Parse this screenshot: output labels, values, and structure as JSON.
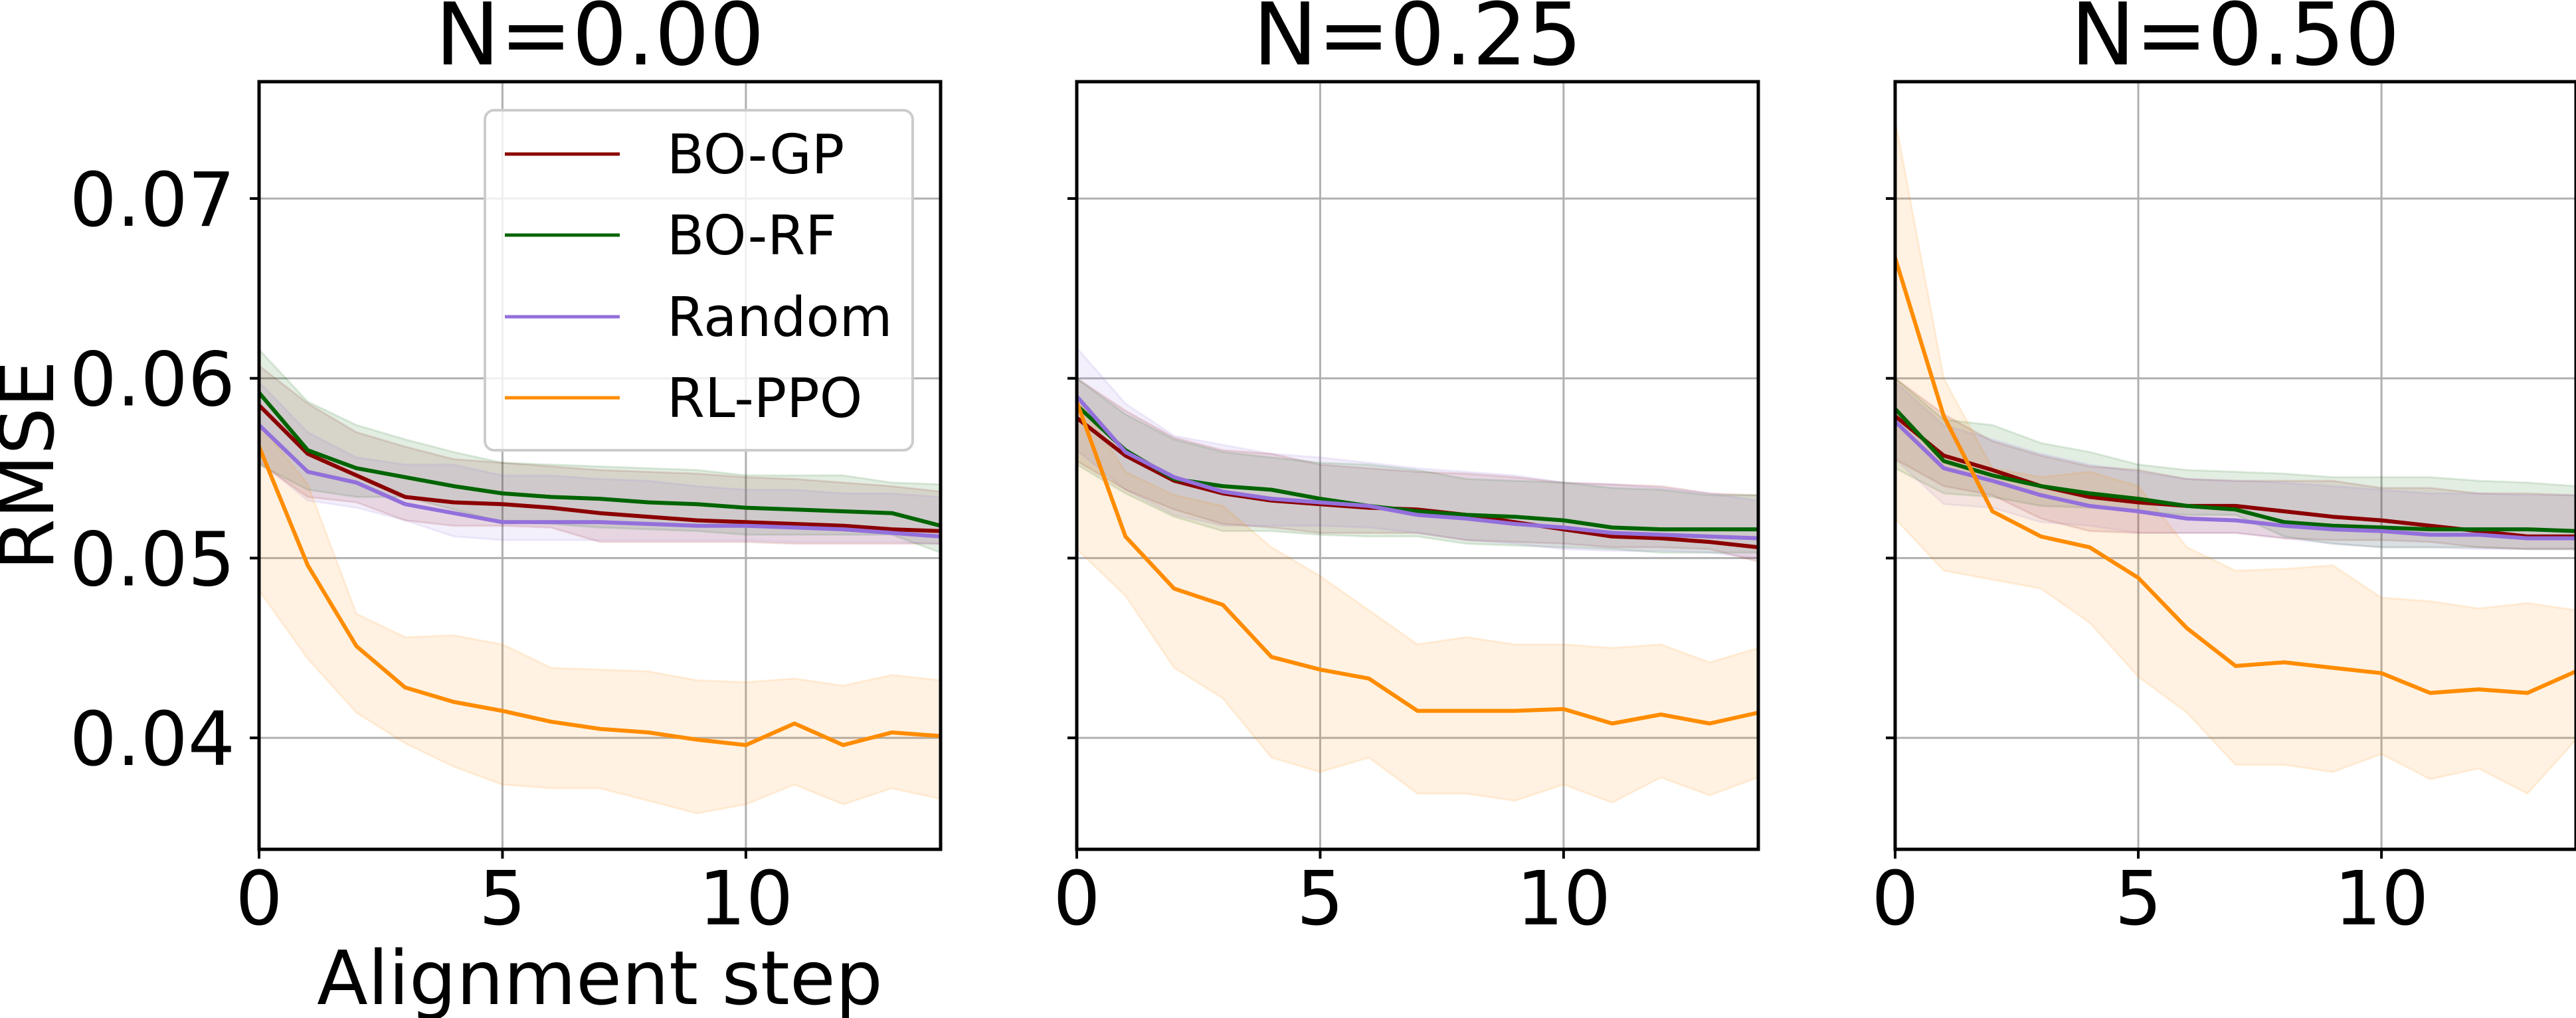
{
  "chart_data": [
    {
      "type": "line",
      "title": "N=0.00",
      "xlabel": "Alignment step",
      "ylabel": "RMSE",
      "xlim": [
        0,
        14
      ],
      "ylim": [
        0.0338,
        0.0765
      ],
      "xticks": [
        0,
        5,
        10
      ],
      "xtick_labels": [
        "0",
        "5",
        "10"
      ],
      "yticks": [
        0.04,
        0.05,
        0.06,
        0.07
      ],
      "ytick_labels": [
        "0.04",
        "0.05",
        "0.06",
        "0.07"
      ],
      "grid": true,
      "legend": {
        "placement": "upper-right",
        "entries": [
          "BO-GP",
          "BO-RF",
          "Random",
          "RL-PPO"
        ]
      },
      "x": [
        0,
        1,
        2,
        3,
        4,
        5,
        6,
        7,
        8,
        9,
        10,
        11,
        12,
        13,
        14
      ],
      "series": [
        {
          "name": "BO-GP",
          "color": "#8b0000",
          "values": [
            0.0585,
            0.0558,
            0.0546,
            0.0534,
            0.0531,
            0.053,
            0.0528,
            0.0525,
            0.0523,
            0.0521,
            0.052,
            0.0519,
            0.0518,
            0.0516,
            0.0515
          ],
          "lower": [
            0.0553,
            0.0534,
            0.0531,
            0.0521,
            0.0518,
            0.0518,
            0.0517,
            0.0509,
            0.0509,
            0.0509,
            0.0509,
            0.0508,
            0.0508,
            0.0508,
            0.0508
          ],
          "upper": [
            0.0607,
            0.0586,
            0.057,
            0.0562,
            0.0555,
            0.0553,
            0.0551,
            0.0549,
            0.0548,
            0.0547,
            0.0545,
            0.0544,
            0.0542,
            0.054,
            0.0537
          ]
        },
        {
          "name": "BO-RF",
          "color": "#006400",
          "values": [
            0.0592,
            0.056,
            0.055,
            0.0545,
            0.054,
            0.0536,
            0.0534,
            0.0533,
            0.0531,
            0.053,
            0.0528,
            0.0527,
            0.0526,
            0.0525,
            0.0518
          ],
          "lower": [
            0.0552,
            0.0538,
            0.0534,
            0.0534,
            0.0527,
            0.052,
            0.0519,
            0.0517,
            0.0516,
            0.0515,
            0.0513,
            0.0513,
            0.0513,
            0.0513,
            0.0503
          ],
          "upper": [
            0.0616,
            0.0587,
            0.0574,
            0.0566,
            0.0559,
            0.0553,
            0.0552,
            0.0551,
            0.055,
            0.0549,
            0.0546,
            0.0546,
            0.0546,
            0.0542,
            0.0541
          ]
        },
        {
          "name": "Random",
          "color": "#9370db",
          "values": [
            0.0574,
            0.0548,
            0.0542,
            0.053,
            0.0525,
            0.052,
            0.052,
            0.052,
            0.0519,
            0.0518,
            0.0518,
            0.0517,
            0.0516,
            0.0514,
            0.0512
          ],
          "lower": [
            0.0554,
            0.0532,
            0.0528,
            0.0521,
            0.0512,
            0.051,
            0.051,
            0.051,
            0.051,
            0.051,
            0.051,
            0.0509,
            0.0509,
            0.0509,
            0.0508
          ],
          "upper": [
            0.0598,
            0.057,
            0.0556,
            0.0552,
            0.0552,
            0.0546,
            0.0546,
            0.0544,
            0.0543,
            0.054,
            0.0538,
            0.0538,
            0.0536,
            0.0536,
            0.0534
          ]
        },
        {
          "name": "RL-PPO",
          "color": "#ff8c00",
          "values": [
            0.0562,
            0.0496,
            0.0451,
            0.0428,
            0.042,
            0.0415,
            0.0409,
            0.0405,
            0.0403,
            0.0399,
            0.0396,
            0.0408,
            0.0396,
            0.0403,
            0.0401
          ],
          "lower": [
            0.0482,
            0.0444,
            0.0414,
            0.0397,
            0.0384,
            0.0374,
            0.0372,
            0.0372,
            0.0365,
            0.0358,
            0.0363,
            0.0374,
            0.0363,
            0.0372,
            0.0366
          ],
          "upper": [
            0.0575,
            0.0541,
            0.0469,
            0.0456,
            0.0457,
            0.0452,
            0.0439,
            0.0438,
            0.0437,
            0.0432,
            0.0431,
            0.0433,
            0.0429,
            0.0435,
            0.0432
          ]
        }
      ]
    },
    {
      "type": "line",
      "title": "N=0.25",
      "xlabel": "",
      "ylabel": "",
      "xlim": [
        0,
        14
      ],
      "ylim": [
        0.0338,
        0.0765
      ],
      "xticks": [
        0,
        5,
        10
      ],
      "xtick_labels": [
        "0",
        "5",
        "10"
      ],
      "yticks": [
        0.04,
        0.05,
        0.06,
        0.07
      ],
      "ytick_labels": [],
      "grid": true,
      "x": [
        0,
        1,
        2,
        3,
        4,
        5,
        6,
        7,
        8,
        9,
        10,
        11,
        12,
        13,
        14
      ],
      "series": [
        {
          "name": "BO-GP",
          "color": "#8b0000",
          "values": [
            0.0578,
            0.0557,
            0.0543,
            0.0536,
            0.0532,
            0.053,
            0.0528,
            0.0527,
            0.0524,
            0.052,
            0.0516,
            0.0512,
            0.0511,
            0.0509,
            0.0506
          ],
          "lower": [
            0.0554,
            0.0538,
            0.0527,
            0.0519,
            0.0517,
            0.0514,
            0.0514,
            0.0514,
            0.051,
            0.0509,
            0.0508,
            0.0506,
            0.0506,
            0.0505,
            0.0498
          ],
          "upper": [
            0.06,
            0.0582,
            0.0567,
            0.056,
            0.0558,
            0.0552,
            0.055,
            0.0548,
            0.0547,
            0.0545,
            0.0542,
            0.0541,
            0.054,
            0.0536,
            0.0535
          ]
        },
        {
          "name": "BO-RF",
          "color": "#006400",
          "values": [
            0.0585,
            0.056,
            0.0544,
            0.054,
            0.0538,
            0.0533,
            0.0529,
            0.0526,
            0.0524,
            0.0523,
            0.0521,
            0.0517,
            0.0516,
            0.0516,
            0.0516
          ],
          "lower": [
            0.0552,
            0.0536,
            0.0523,
            0.0515,
            0.0515,
            0.0513,
            0.0512,
            0.0512,
            0.0508,
            0.0507,
            0.0506,
            0.0505,
            0.0503,
            0.0503,
            0.0503
          ],
          "upper": [
            0.06,
            0.058,
            0.0566,
            0.0559,
            0.0556,
            0.0553,
            0.0552,
            0.0549,
            0.0544,
            0.0543,
            0.0542,
            0.0539,
            0.0538,
            0.0535,
            0.0535
          ]
        },
        {
          "name": "Random",
          "color": "#9370db",
          "values": [
            0.059,
            0.0559,
            0.0545,
            0.0537,
            0.0533,
            0.0531,
            0.0529,
            0.0524,
            0.0522,
            0.0519,
            0.0517,
            0.0514,
            0.0513,
            0.0512,
            0.0511
          ],
          "lower": [
            0.056,
            0.0538,
            0.0524,
            0.0518,
            0.0518,
            0.0518,
            0.0517,
            0.0514,
            0.051,
            0.0508,
            0.0505,
            0.0504,
            0.0504,
            0.0503,
            0.05
          ],
          "upper": [
            0.0617,
            0.0586,
            0.0568,
            0.0563,
            0.0558,
            0.0556,
            0.0553,
            0.055,
            0.0548,
            0.0546,
            0.0542,
            0.0541,
            0.0539,
            0.0536,
            0.0532
          ]
        },
        {
          "name": "RL-PPO",
          "color": "#ff8c00",
          "values": [
            0.0587,
            0.0512,
            0.0483,
            0.0474,
            0.0445,
            0.0438,
            0.0433,
            0.0415,
            0.0415,
            0.0415,
            0.0416,
            0.0408,
            0.0413,
            0.0408,
            0.0414
          ],
          "lower": [
            0.0505,
            0.0479,
            0.0439,
            0.0422,
            0.0389,
            0.0381,
            0.0389,
            0.0369,
            0.0369,
            0.0365,
            0.0374,
            0.0364,
            0.0378,
            0.0368,
            0.0378
          ],
          "upper": [
            0.059,
            0.0548,
            0.0535,
            0.0529,
            0.0506,
            0.049,
            0.0471,
            0.0452,
            0.0456,
            0.0452,
            0.0452,
            0.045,
            0.0452,
            0.0442,
            0.045
          ]
        }
      ]
    },
    {
      "type": "line",
      "title": "N=0.50",
      "xlabel": "",
      "ylabel": "",
      "xlim": [
        0,
        14
      ],
      "ylim": [
        0.0338,
        0.0765
      ],
      "xticks": [
        0,
        5,
        10
      ],
      "xtick_labels": [
        "0",
        "5",
        "10"
      ],
      "yticks": [
        0.04,
        0.05,
        0.06,
        0.07
      ],
      "ytick_labels": [],
      "grid": true,
      "x": [
        0,
        1,
        2,
        3,
        4,
        5,
        6,
        7,
        8,
        9,
        10,
        11,
        12,
        13,
        14
      ],
      "series": [
        {
          "name": "BO-GP",
          "color": "#8b0000",
          "values": [
            0.0579,
            0.0557,
            0.0549,
            0.054,
            0.0534,
            0.0531,
            0.0529,
            0.0529,
            0.0526,
            0.0523,
            0.0521,
            0.0518,
            0.0515,
            0.0512,
            0.0512
          ],
          "lower": [
            0.0555,
            0.054,
            0.0535,
            0.0522,
            0.0515,
            0.0514,
            0.0514,
            0.0514,
            0.0511,
            0.051,
            0.051,
            0.0509,
            0.0506,
            0.0505,
            0.0505
          ],
          "upper": [
            0.06,
            0.058,
            0.0565,
            0.0557,
            0.0551,
            0.0549,
            0.0544,
            0.0543,
            0.0543,
            0.0543,
            0.0539,
            0.0539,
            0.0536,
            0.0536,
            0.0535
          ]
        },
        {
          "name": "BO-RF",
          "color": "#006400",
          "values": [
            0.0583,
            0.0554,
            0.0546,
            0.054,
            0.0536,
            0.0533,
            0.0529,
            0.0527,
            0.052,
            0.0518,
            0.0517,
            0.0516,
            0.0516,
            0.0516,
            0.0515
          ],
          "lower": [
            0.055,
            0.0536,
            0.0534,
            0.0529,
            0.0528,
            0.0526,
            0.0524,
            0.0524,
            0.0512,
            0.0508,
            0.0506,
            0.0506,
            0.0506,
            0.0505,
            0.0505
          ],
          "upper": [
            0.06,
            0.0577,
            0.0574,
            0.0564,
            0.0559,
            0.0552,
            0.0549,
            0.0548,
            0.0547,
            0.0545,
            0.0545,
            0.0545,
            0.0543,
            0.0542,
            0.054
          ]
        },
        {
          "name": "Random",
          "color": "#9370db",
          "values": [
            0.0576,
            0.055,
            0.0543,
            0.0535,
            0.0529,
            0.0526,
            0.0522,
            0.0521,
            0.0518,
            0.0516,
            0.0515,
            0.0513,
            0.0513,
            0.0511,
            0.0511
          ],
          "lower": [
            0.0555,
            0.053,
            0.0528,
            0.052,
            0.0518,
            0.0514,
            0.0514,
            0.0514,
            0.0511,
            0.0508,
            0.0506,
            0.0506,
            0.0505,
            0.0505,
            0.0505
          ],
          "upper": [
            0.0598,
            0.0574,
            0.0566,
            0.0558,
            0.0552,
            0.0548,
            0.0544,
            0.0543,
            0.0542,
            0.054,
            0.0538,
            0.0536,
            0.0536,
            0.0535,
            0.0535
          ]
        },
        {
          "name": "RL-PPO",
          "color": "#ff8c00",
          "values": [
            0.0667,
            0.0579,
            0.0526,
            0.0512,
            0.0506,
            0.0489,
            0.0461,
            0.044,
            0.0442,
            0.0439,
            0.0436,
            0.0425,
            0.0427,
            0.0425,
            0.0437
          ],
          "lower": [
            0.0522,
            0.0493,
            0.0488,
            0.0483,
            0.0464,
            0.0434,
            0.0414,
            0.0385,
            0.0385,
            0.0381,
            0.0391,
            0.0377,
            0.0383,
            0.0369,
            0.0399
          ],
          "upper": [
            0.0744,
            0.06,
            0.055,
            0.0545,
            0.0548,
            0.054,
            0.0506,
            0.0493,
            0.0494,
            0.0496,
            0.0478,
            0.0476,
            0.0472,
            0.0475,
            0.0471
          ]
        }
      ]
    }
  ]
}
